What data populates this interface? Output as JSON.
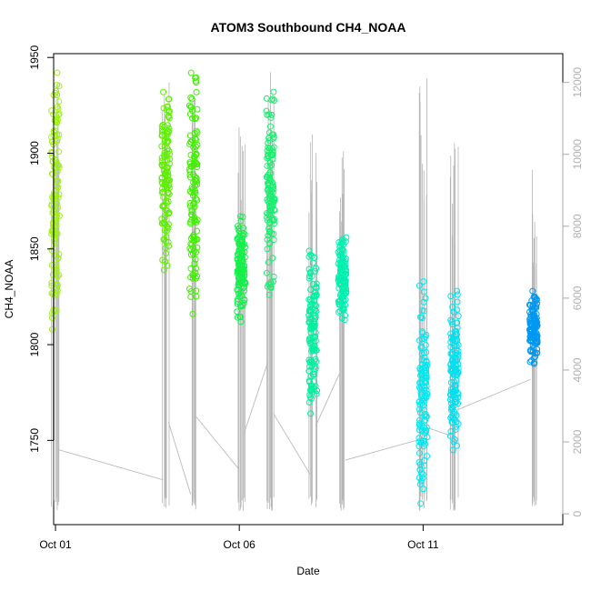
{
  "chart_data": {
    "type": "scatter",
    "title": "ATOM3 Southbound CH4_NOAA",
    "xlabel": "Date",
    "ylabel": "CH4_NOAA",
    "x_ticks": [
      {
        "day": 1,
        "label": "Oct 01"
      },
      {
        "day": 6,
        "label": "Oct 06"
      },
      {
        "day": 11,
        "label": "Oct 11"
      }
    ],
    "xlim_days": [
      0.95,
      14.8
    ],
    "ylim": [
      1706,
      1952
    ],
    "y_ticks": [
      1750,
      1800,
      1850,
      1900,
      1950
    ],
    "y2_ticks": [
      0,
      2000,
      4000,
      6000,
      8000,
      10000,
      12000
    ],
    "y2lim": [
      -300,
      12800
    ],
    "grid": false,
    "series": [
      {
        "day": 1.0,
        "ch4_min": 1808,
        "ch4_max": 1942,
        "color": "#9ef016"
      },
      {
        "day": 4.0,
        "ch4_min": 1839,
        "ch4_max": 1932,
        "color": "#5ef000"
      },
      {
        "day": 4.75,
        "ch4_min": 1816,
        "ch4_max": 1942,
        "color": "#40f000"
      },
      {
        "day": 6.05,
        "ch4_min": 1812,
        "ch4_max": 1867,
        "color": "#14f04a"
      },
      {
        "day": 6.85,
        "ch4_min": 1826,
        "ch4_max": 1932,
        "color": "#17f06e"
      },
      {
        "day": 8.0,
        "ch4_min": 1764,
        "ch4_max": 1849,
        "color": "#00f0a0"
      },
      {
        "day": 8.8,
        "ch4_min": 1813,
        "ch4_max": 1856,
        "color": "#00f0b0"
      },
      {
        "day": 11.0,
        "ch4_min": 1717,
        "ch4_max": 1833,
        "color": "#00e8f0"
      },
      {
        "day": 11.85,
        "ch4_min": 1745,
        "ch4_max": 1828,
        "color": "#00e0f0"
      },
      {
        "day": 14.0,
        "ch4_min": 1790,
        "ch4_max": 1828,
        "color": "#0098f0"
      }
    ],
    "altitude_series": {
      "color": "#b4b4b4",
      "segments": [
        {
          "day": 1.0,
          "max": 12400
        },
        {
          "day": 4.0,
          "max": 12200
        },
        {
          "day": 4.75,
          "max": 12500
        },
        {
          "day": 6.05,
          "max": 11000
        },
        {
          "day": 6.85,
          "max": 12300
        },
        {
          "day": 8.0,
          "max": 11400
        },
        {
          "day": 8.8,
          "max": 10500
        },
        {
          "day": 11.0,
          "max": 12200
        },
        {
          "day": 11.85,
          "max": 10700
        },
        {
          "day": 14.0,
          "max": 9800
        }
      ]
    }
  }
}
